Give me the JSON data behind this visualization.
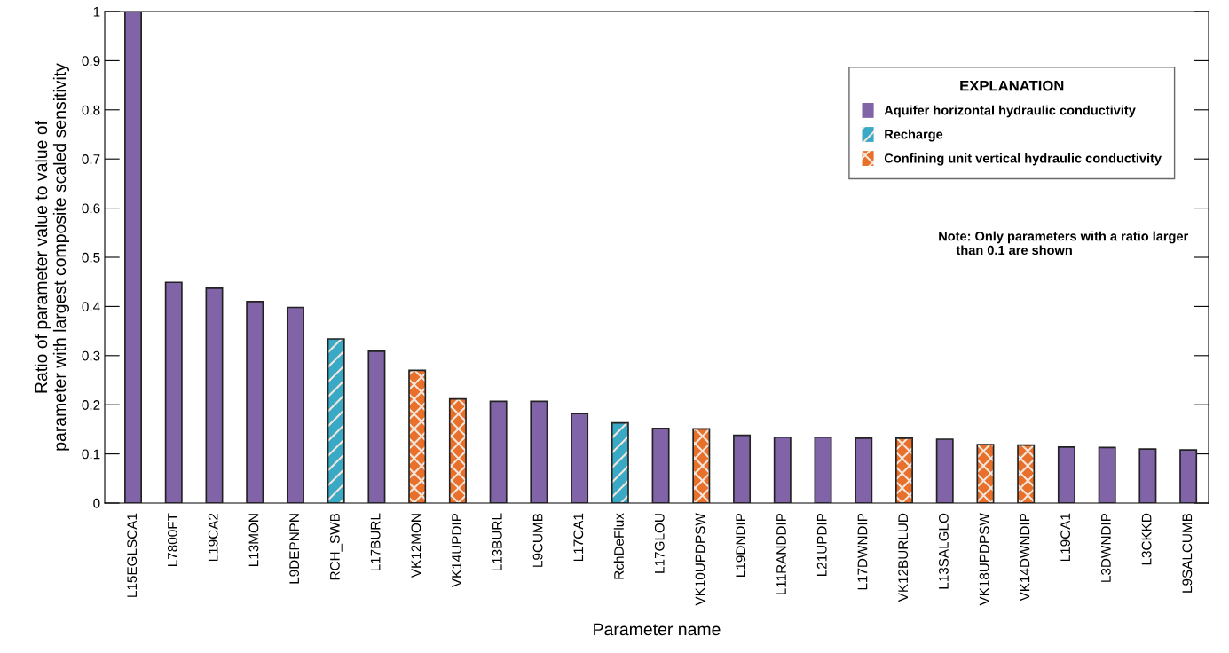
{
  "chart_data": {
    "type": "bar",
    "xlabel": "Parameter name",
    "ylabel": "Ratio of parameter value to value of\nparameter with largest composite scaled sensitivity",
    "legend_title": "EXPLANATION",
    "categories": [
      "L15EGLSCA1",
      "L7800FT",
      "L19CA2",
      "L13MON",
      "L9DEPNPN",
      "RCH_SWB",
      "L17BURL",
      "VK12MON",
      "VK14UPDIP",
      "L13BURL",
      "L9CUMB",
      "L17CA1",
      "RchDeFlux",
      "L17GLOU",
      "VK10UPDPSW",
      "L19DNDIP",
      "L11RANDDIP",
      "L21UPDIP",
      "L17DWNDIP",
      "VK12BURLUD",
      "L13SALGLO",
      "VK18UPDPSW",
      "VK14DWNDIP",
      "L19CA1",
      "L3DWNDIP",
      "L3CKKD",
      "L9SALCUMB"
    ],
    "series": [
      {
        "name": "Aquifer horizontal hydraulic conductivity",
        "color": "#8064a7",
        "values": [
          1.0,
          0.449,
          0.437,
          0.41,
          0.398,
          null,
          0.309,
          null,
          null,
          0.207,
          0.207,
          0.182,
          null,
          0.152,
          null,
          0.138,
          0.134,
          0.134,
          0.132,
          null,
          0.13,
          null,
          null,
          0.114,
          0.113,
          0.11,
          0.108
        ]
      },
      {
        "name": "Recharge",
        "color": "#3aa9c5",
        "values": [
          null,
          null,
          null,
          null,
          null,
          0.334,
          null,
          null,
          null,
          null,
          null,
          null,
          0.163,
          null,
          null,
          null,
          null,
          null,
          null,
          null,
          null,
          null,
          null,
          null,
          null,
          null,
          null
        ]
      },
      {
        "name": "Confining unit vertical hydraulic conductivity",
        "color": "#e8702a",
        "values": [
          null,
          null,
          null,
          null,
          null,
          null,
          null,
          0.27,
          0.212,
          null,
          null,
          null,
          null,
          null,
          0.151,
          null,
          null,
          null,
          null,
          0.132,
          null,
          0.119,
          0.118,
          null,
          null,
          null,
          null
        ]
      }
    ],
    "ylim": [
      0,
      1
    ],
    "yticks": [
      0,
      0.1,
      0.2,
      0.3,
      0.4,
      0.5,
      0.6,
      0.7,
      0.8,
      0.9,
      1
    ],
    "grid": false,
    "legend": "top right",
    "annotations": [
      "Note: Only parameters with a ratio larger\n     than 0.1 are shown"
    ]
  }
}
